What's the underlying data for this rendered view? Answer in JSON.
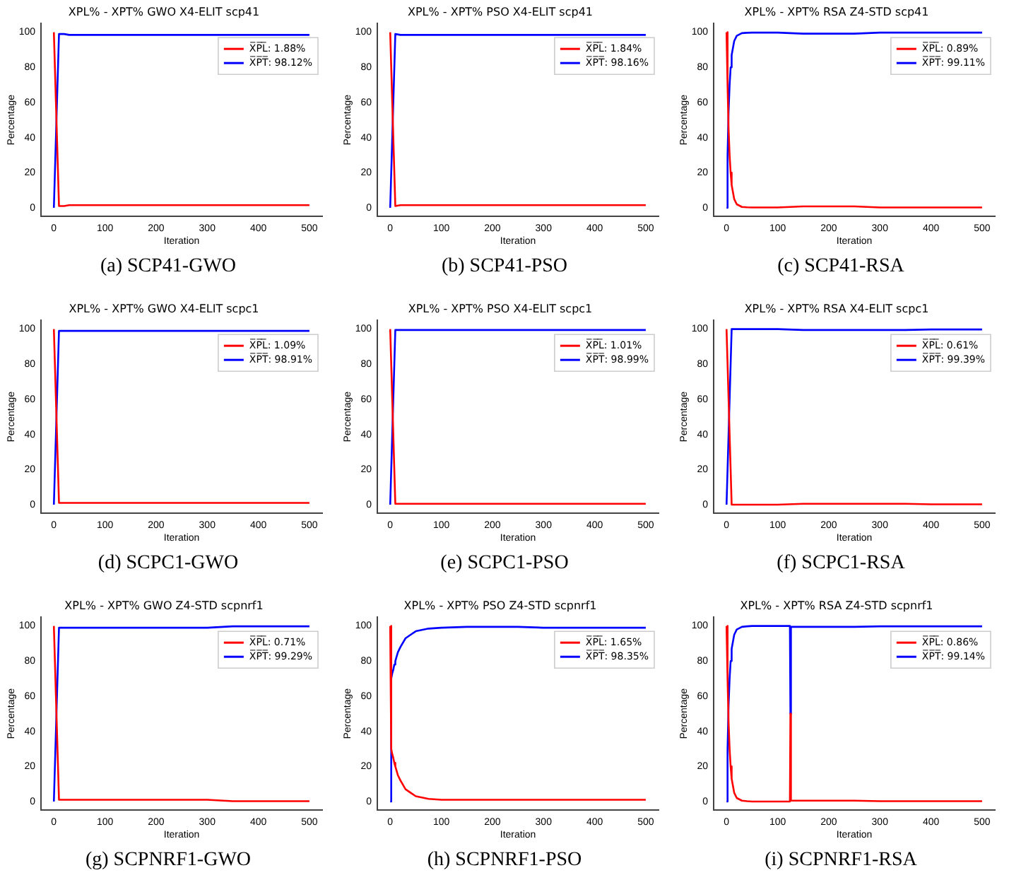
{
  "chart_data": [
    {
      "type": "line",
      "title": "XPL% - XPT% GWO X4-ELIT scp41",
      "xlabel": "Iteration",
      "ylabel": "Percentage",
      "annotations": [
        "(a) SCP41-GWO"
      ],
      "legend": "top right",
      "marker": "none",
      "xlim": [
        -25,
        525
      ],
      "ylim": [
        -5,
        105
      ],
      "xticks": [
        0,
        100,
        200,
        300,
        400,
        500
      ],
      "yticks": [
        0,
        20,
        40,
        60,
        80,
        100
      ],
      "x": [
        0,
        10,
        20,
        30,
        40,
        50,
        75,
        100,
        150,
        200,
        250,
        300,
        350,
        400,
        450,
        500
      ],
      "series": [
        {
          "name": "X̅P̅L̅: 1.88%",
          "color": "#ff0000",
          "values": [
            100,
            1,
            1,
            1.5,
            1.5,
            1.5,
            1.5,
            1.5,
            1.5,
            1.5,
            1.5,
            1.5,
            1.5,
            1.5,
            1.5,
            1.5
          ]
        },
        {
          "name": "X̅P̅T̅: 98.12%",
          "color": "#0000ff",
          "values": [
            0,
            99,
            99,
            98.5,
            98.5,
            98.5,
            98.5,
            98.5,
            98.5,
            98.5,
            98.5,
            98.5,
            98.5,
            98.5,
            98.5,
            98.5
          ]
        }
      ]
    },
    {
      "type": "line",
      "title": "XPL% - XPT% PSO X4-ELIT scp41",
      "xlabel": "Iteration",
      "ylabel": "Percentage",
      "annotations": [
        "(b) SCP41-PSO"
      ],
      "legend": "top right",
      "marker": "none",
      "xlim": [
        -25,
        525
      ],
      "ylim": [
        -5,
        105
      ],
      "xticks": [
        0,
        100,
        200,
        300,
        400,
        500
      ],
      "yticks": [
        0,
        20,
        40,
        60,
        80,
        100
      ],
      "x": [
        0,
        10,
        20,
        30,
        40,
        50,
        75,
        100,
        150,
        200,
        250,
        300,
        350,
        400,
        450,
        500
      ],
      "series": [
        {
          "name": "X̅P̅L̅: 1.84%",
          "color": "#ff0000",
          "values": [
            100,
            1,
            1.5,
            1.5,
            1.5,
            1.5,
            1.5,
            1.5,
            1.5,
            1.5,
            1.5,
            1.5,
            1.5,
            1.5,
            1.5,
            1.5
          ]
        },
        {
          "name": "X̅P̅T̅: 98.16%",
          "color": "#0000ff",
          "values": [
            0,
            99,
            98.5,
            98.5,
            98.5,
            98.5,
            98.5,
            98.5,
            98.5,
            98.5,
            98.5,
            98.5,
            98.5,
            98.5,
            98.5,
            98.5
          ]
        }
      ]
    },
    {
      "type": "line",
      "title": "XPL% - XPT% RSA Z4-STD scp41",
      "xlabel": "Iteration",
      "ylabel": "Percentage",
      "annotations": [
        "(c) SCP41-RSA"
      ],
      "legend": "top right",
      "marker": "none",
      "xlim": [
        -25,
        525
      ],
      "ylim": [
        -5,
        105
      ],
      "xticks": [
        0,
        100,
        200,
        300,
        400,
        500
      ],
      "yticks": [
        0,
        20,
        40,
        60,
        80,
        100
      ],
      "x": [
        0,
        2,
        4,
        6,
        8,
        10,
        15,
        20,
        30,
        40,
        50,
        75,
        100,
        150,
        200,
        250,
        300,
        350,
        400,
        450,
        500
      ],
      "series": [
        {
          "name": "X̅P̅L̅: 0.89%",
          "color": "#ff0000",
          "values": [
            100,
            70,
            45,
            30,
            20,
            13,
            5,
            2,
            0.5,
            0.3,
            0.2,
            0.2,
            0.2,
            0.8,
            0.8,
            0.8,
            0.2,
            0.2,
            0.2,
            0.2,
            0.2
          ]
        },
        {
          "name": "X̅P̅T̅: 99.11%",
          "color": "#0000ff",
          "values": [
            0,
            30,
            55,
            70,
            80,
            87,
            95,
            98,
            99.5,
            99.7,
            99.8,
            99.8,
            99.8,
            99.2,
            99.2,
            99.2,
            99.8,
            99.8,
            99.8,
            99.8,
            99.8
          ]
        }
      ]
    },
    {
      "type": "line",
      "title": "XPL% - XPT% GWO X4-ELIT scpc1",
      "xlabel": "Iteration",
      "ylabel": "Percentage",
      "annotations": [
        "(d) SCPC1-GWO"
      ],
      "legend": "top right",
      "marker": "none",
      "xlim": [
        -25,
        525
      ],
      "ylim": [
        -5,
        105
      ],
      "xticks": [
        0,
        100,
        200,
        300,
        400,
        500
      ],
      "yticks": [
        0,
        20,
        40,
        60,
        80,
        100
      ],
      "x": [
        0,
        10,
        20,
        30,
        40,
        50,
        75,
        100,
        150,
        200,
        250,
        300,
        350,
        400,
        450,
        500
      ],
      "series": [
        {
          "name": "X̅P̅L̅: 1.09%",
          "color": "#ff0000",
          "values": [
            100,
            1,
            1,
            1,
            1,
            1,
            1,
            1,
            1,
            1,
            1,
            1,
            1,
            1,
            1,
            1
          ]
        },
        {
          "name": "X̅P̅T̅: 98.91%",
          "color": "#0000ff",
          "values": [
            0,
            99,
            99,
            99,
            99,
            99,
            99,
            99,
            99,
            99,
            99,
            99,
            99,
            99,
            99,
            99
          ]
        }
      ]
    },
    {
      "type": "line",
      "title": "XPL% - XPT% PSO X4-ELIT scpc1",
      "xlabel": "Iteration",
      "ylabel": "Percentage",
      "annotations": [
        "(e) SCPC1-PSO"
      ],
      "legend": "top right",
      "marker": "none",
      "xlim": [
        -25,
        525
      ],
      "ylim": [
        -5,
        105
      ],
      "xticks": [
        0,
        100,
        200,
        300,
        400,
        500
      ],
      "yticks": [
        0,
        20,
        40,
        60,
        80,
        100
      ],
      "x": [
        0,
        10,
        20,
        30,
        40,
        50,
        75,
        100,
        150,
        200,
        250,
        300,
        350,
        400,
        450,
        500
      ],
      "series": [
        {
          "name": "X̅P̅L̅: 1.01%",
          "color": "#ff0000",
          "values": [
            100,
            0.5,
            0.5,
            0.5,
            0.5,
            0.5,
            0.5,
            0.5,
            0.5,
            0.5,
            0.5,
            0.5,
            0.5,
            0.5,
            0.5,
            0.5
          ]
        },
        {
          "name": "X̅P̅T̅: 98.99%",
          "color": "#0000ff",
          "values": [
            0,
            99.5,
            99.5,
            99.5,
            99.5,
            99.5,
            99.5,
            99.5,
            99.5,
            99.5,
            99.5,
            99.5,
            99.5,
            99.5,
            99.5,
            99.5
          ]
        }
      ]
    },
    {
      "type": "line",
      "title": "XPL% - XPT% RSA X4-ELIT scpc1",
      "xlabel": "Iteration",
      "ylabel": "Percentage",
      "annotations": [
        "(f) SCPC1-RSA"
      ],
      "legend": "top right",
      "marker": "none",
      "xlim": [
        -25,
        525
      ],
      "ylim": [
        -5,
        105
      ],
      "xticks": [
        0,
        100,
        200,
        300,
        400,
        500
      ],
      "yticks": [
        0,
        20,
        40,
        60,
        80,
        100
      ],
      "x": [
        0,
        10,
        20,
        30,
        40,
        50,
        75,
        100,
        150,
        200,
        250,
        300,
        350,
        400,
        450,
        500
      ],
      "series": [
        {
          "name": "X̅P̅L̅: 0.61%",
          "color": "#ff0000",
          "values": [
            100,
            0,
            0,
            0,
            0,
            0,
            0,
            0,
            0.5,
            0.5,
            0.5,
            0.5,
            0.5,
            0.2,
            0.2,
            0.2
          ]
        },
        {
          "name": "X̅P̅T̅: 99.39%",
          "color": "#0000ff",
          "values": [
            0,
            100,
            100,
            100,
            100,
            100,
            100,
            100,
            99.5,
            99.5,
            99.5,
            99.5,
            99.5,
            99.8,
            99.8,
            99.8
          ]
        }
      ]
    },
    {
      "type": "line",
      "title": "XPL% - XPT% GWO Z4-STD scpnrf1",
      "xlabel": "Iteration",
      "ylabel": "Percentage",
      "annotations": [
        "(g) SCPNRF1-GWO"
      ],
      "legend": "top right",
      "marker": "none",
      "xlim": [
        -25,
        525
      ],
      "ylim": [
        -5,
        105
      ],
      "xticks": [
        0,
        100,
        200,
        300,
        400,
        500
      ],
      "yticks": [
        0,
        20,
        40,
        60,
        80,
        100
      ],
      "x": [
        0,
        10,
        20,
        30,
        40,
        50,
        75,
        100,
        150,
        200,
        250,
        300,
        350,
        400,
        450,
        500
      ],
      "series": [
        {
          "name": "X̅P̅L̅: 0.71%",
          "color": "#ff0000",
          "values": [
            100,
            1,
            1,
            1,
            1,
            1,
            1,
            1,
            1,
            1,
            1,
            1,
            0.2,
            0.2,
            0.2,
            0.2
          ]
        },
        {
          "name": "X̅P̅T̅: 99.29%",
          "color": "#0000ff",
          "values": [
            0,
            99,
            99,
            99,
            99,
            99,
            99,
            99,
            99,
            99,
            99,
            99,
            99.8,
            99.8,
            99.8,
            99.8
          ]
        }
      ]
    },
    {
      "type": "line",
      "title": "XPL% - XPT% PSO Z4-STD scpnrf1",
      "xlabel": "Iteration",
      "ylabel": "Percentage",
      "annotations": [
        "(h) SCPNRF1-PSO"
      ],
      "legend": "top right",
      "marker": "none",
      "xlim": [
        -25,
        525
      ],
      "ylim": [
        -5,
        105
      ],
      "xticks": [
        0,
        100,
        200,
        300,
        400,
        500
      ],
      "yticks": [
        0,
        20,
        40,
        60,
        80,
        100
      ],
      "x": [
        0,
        2,
        4,
        6,
        8,
        10,
        15,
        20,
        30,
        40,
        50,
        75,
        100,
        150,
        200,
        250,
        300,
        350,
        400,
        450,
        500
      ],
      "series": [
        {
          "name": "X̅P̅L̅: 1.65%",
          "color": "#ff0000",
          "values": [
            100,
            30,
            27,
            25,
            22,
            20,
            15,
            12,
            7,
            5,
            3,
            1.5,
            1,
            1,
            1,
            1,
            1,
            1,
            1,
            1,
            1
          ]
        },
        {
          "name": "X̅P̅T̅: 98.35%",
          "color": "#0000ff",
          "values": [
            0,
            70,
            73,
            75,
            78,
            80,
            85,
            88,
            93,
            95,
            97,
            98.5,
            99,
            99.5,
            99.5,
            99.5,
            99,
            99,
            99,
            99,
            99
          ]
        }
      ]
    },
    {
      "type": "line",
      "title": "XPL% - XPT% RSA Z4-STD scpnrf1",
      "xlabel": "Iteration",
      "ylabel": "Percentage",
      "annotations": [
        "(i) SCPNRF1-RSA"
      ],
      "legend": "top right",
      "marker": "none",
      "xlim": [
        -25,
        525
      ],
      "ylim": [
        -5,
        105
      ],
      "xticks": [
        0,
        100,
        200,
        300,
        400,
        500
      ],
      "yticks": [
        0,
        20,
        40,
        60,
        80,
        100
      ],
      "x": [
        0,
        2,
        4,
        6,
        8,
        10,
        15,
        20,
        30,
        40,
        50,
        75,
        100,
        124,
        125,
        126,
        150,
        200,
        250,
        300,
        350,
        380,
        400,
        450,
        500
      ],
      "series": [
        {
          "name": "X̅P̅L̅: 0.86%",
          "color": "#ff0000",
          "values": [
            100,
            70,
            45,
            30,
            20,
            13,
            5,
            2,
            0.5,
            0.2,
            0,
            0,
            0,
            0,
            50,
            0.5,
            0.5,
            0.5,
            0.5,
            0.2,
            0.2,
            0.2,
            0.2,
            0.2,
            0.2
          ]
        },
        {
          "name": "X̅P̅T̅: 99.14%",
          "color": "#0000ff",
          "values": [
            0,
            30,
            55,
            70,
            80,
            87,
            95,
            98,
            99.5,
            99.8,
            100,
            100,
            100,
            100,
            50,
            99.5,
            99.5,
            99.5,
            99.5,
            99.8,
            99.8,
            99.8,
            99.8,
            99.8,
            99.8
          ]
        }
      ]
    }
  ]
}
